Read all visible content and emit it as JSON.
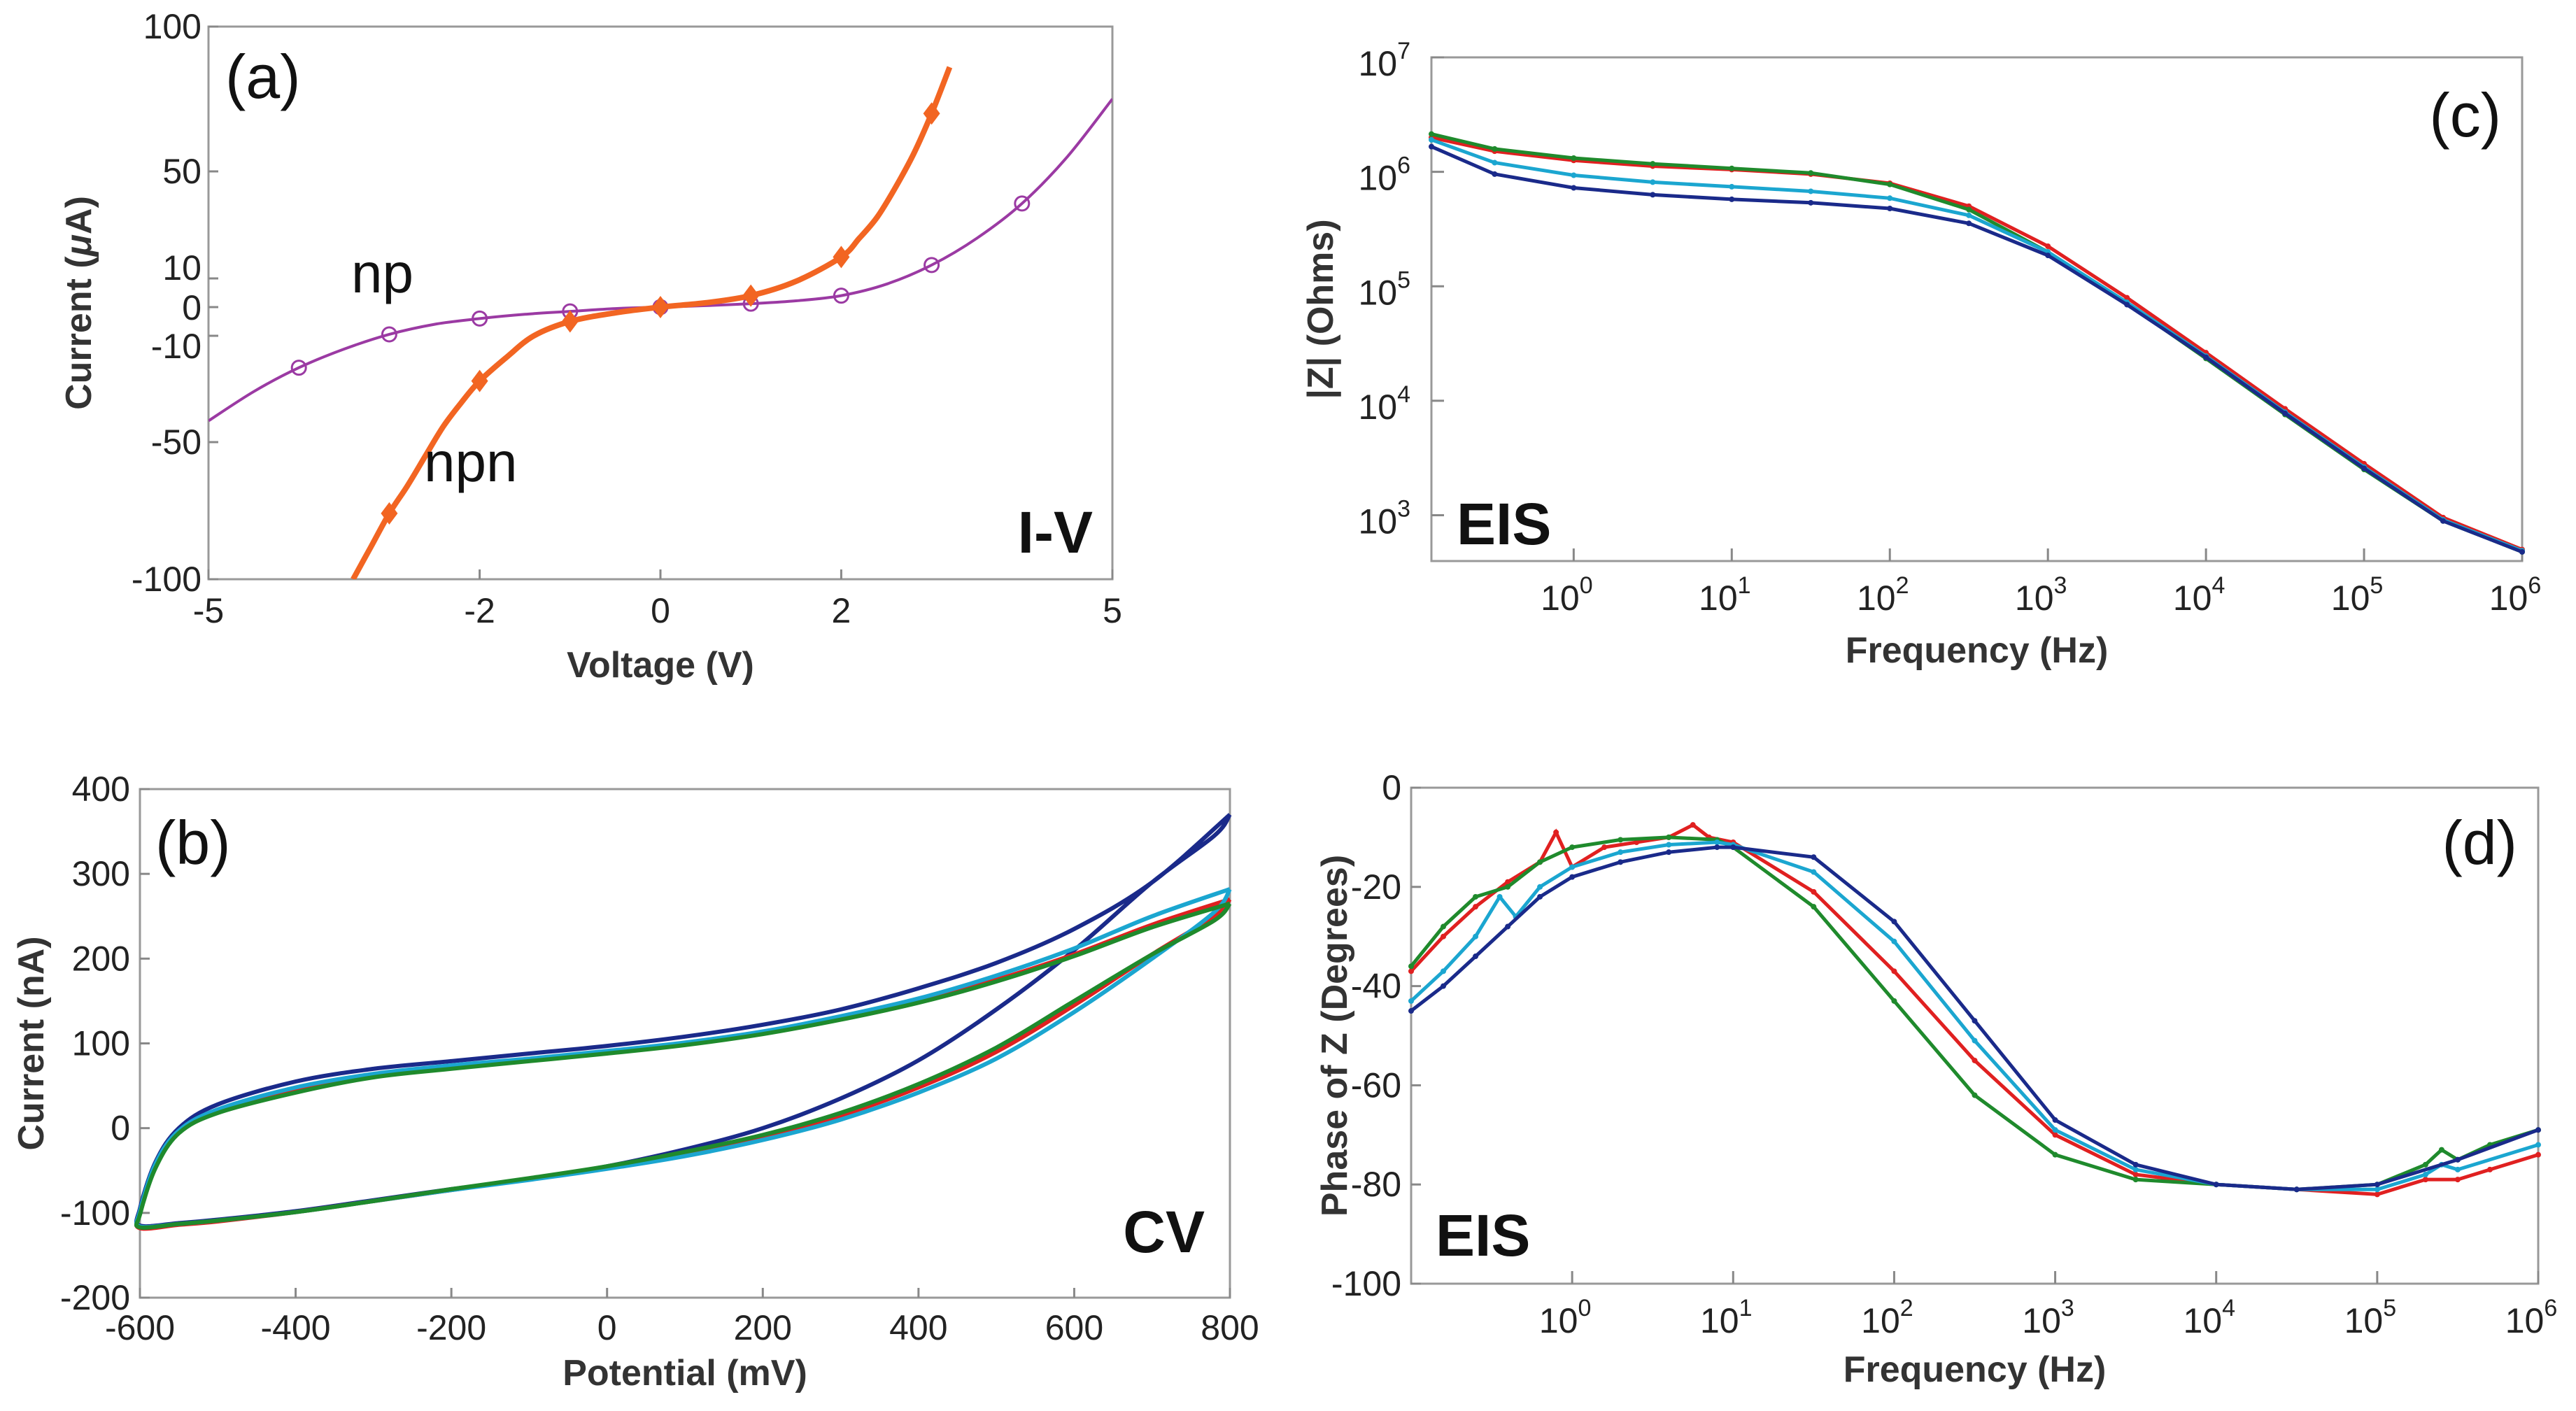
{
  "figure": {
    "panels": [
      "(a)",
      "(b)",
      "(c)",
      "(d)"
    ]
  },
  "chart_data": [
    {
      "id": "a",
      "type": "line",
      "panel_label": "(a)",
      "annotation": "I-V",
      "xlabel": "Voltage (V)",
      "ylabel": "Current (μA)",
      "ylabel_prefix": "Current (",
      "ylabel_mu": "μ",
      "ylabel_suffix": "A)",
      "xlim": [
        -5,
        5
      ],
      "ylim": [
        -100,
        100
      ],
      "x_ticks": [
        -5,
        -2,
        0,
        2,
        5
      ],
      "y_ticks": [
        -100,
        -50,
        -10,
        0,
        10,
        50,
        100
      ],
      "series": [
        {
          "name": "np",
          "color": "#9b3aa3",
          "marker": "circle",
          "x": [
            -5,
            -4.5,
            -4,
            -3.5,
            -3,
            -2.5,
            -2,
            -1.5,
            -1,
            -0.5,
            0,
            0.5,
            1,
            1.5,
            2,
            2.5,
            3,
            3.5,
            4,
            4.5,
            5
          ],
          "y": [
            -42,
            -31,
            -22,
            -15,
            -9.5,
            -6,
            -4,
            -2.5,
            -1.5,
            -0.5,
            0,
            0.5,
            1.2,
            2.2,
            4,
            8,
            15,
            25,
            38,
            55,
            75
          ],
          "marker_x": [
            -4,
            -3,
            -2,
            -1,
            0,
            1,
            2,
            3,
            4
          ],
          "marker_y": [
            -22,
            -9.5,
            -4,
            -1.5,
            0,
            1.2,
            4,
            15,
            38
          ]
        },
        {
          "name": "npn",
          "color": "#f26522",
          "marker": "diamond",
          "x": [
            -3.4,
            -3.2,
            -3,
            -2.8,
            -2.6,
            -2.4,
            -2.2,
            -2,
            -1.7,
            -1.4,
            -1,
            -0.5,
            0,
            0.5,
            1,
            1.5,
            2,
            2.2,
            2.4,
            2.6,
            2.8,
            3,
            3.2
          ],
          "y": [
            -100,
            -88,
            -76,
            -66,
            -55,
            -44,
            -35,
            -27,
            -18,
            -10,
            -5,
            -2,
            0,
            1.5,
            4,
            9,
            18,
            25,
            33,
            44,
            56,
            70,
            86
          ],
          "marker_x": [
            -3,
            -2,
            -1,
            0,
            1,
            2,
            3
          ],
          "marker_y": [
            -76,
            -27,
            -5,
            0,
            4,
            18,
            70
          ]
        }
      ]
    },
    {
      "id": "b",
      "type": "line",
      "panel_label": "(b)",
      "annotation": "CV",
      "xlabel": "Potential (mV)",
      "ylabel": "Current (nA)",
      "xlim": [
        -600,
        800
      ],
      "ylim": [
        -200,
        400
      ],
      "x_ticks": [
        -600,
        -400,
        -200,
        0,
        200,
        400,
        600,
        800
      ],
      "y_ticks": [
        -200,
        -100,
        0,
        100,
        200,
        300,
        400
      ],
      "series": [
        {
          "name": "blue",
          "color": "#1a2a8a",
          "x": [
            800,
            700,
            600,
            500,
            400,
            300,
            200,
            100,
            0,
            -100,
            -200,
            -300,
            -400,
            -500,
            -550,
            -580,
            -600,
            -600,
            -550,
            -500,
            -400,
            -300,
            -200,
            -100,
            0,
            100,
            200,
            300,
            400,
            500,
            600,
            700,
            780,
            800
          ],
          "y": [
            370,
            290,
            235,
            195,
            165,
            140,
            122,
            108,
            97,
            88,
            79,
            70,
            55,
            28,
            0,
            -40,
            -95,
            -115,
            -112,
            -108,
            -98,
            -85,
            -72,
            -60,
            -45,
            -25,
            0,
            35,
            80,
            140,
            210,
            290,
            345,
            370
          ]
        },
        {
          "name": "red",
          "color": "#e02020",
          "x": [
            800,
            700,
            600,
            500,
            400,
            300,
            200,
            100,
            0,
            -100,
            -200,
            -300,
            -400,
            -500,
            -550,
            -580,
            -600,
            -600,
            -550,
            -500,
            -400,
            -300,
            -200,
            -100,
            0,
            100,
            200,
            300,
            400,
            500,
            600,
            700,
            780,
            800
          ],
          "y": [
            270,
            240,
            205,
            175,
            150,
            130,
            113,
            100,
            90,
            81,
            72,
            62,
            45,
            20,
            -5,
            -45,
            -100,
            -118,
            -114,
            -110,
            -99,
            -86,
            -73,
            -60,
            -46,
            -30,
            -10,
            15,
            48,
            90,
            145,
            205,
            250,
            270
          ]
        },
        {
          "name": "cyan",
          "color": "#1ba6d0",
          "x": [
            800,
            700,
            600,
            500,
            400,
            300,
            200,
            100,
            0,
            -100,
            -200,
            -300,
            -400,
            -500,
            -550,
            -580,
            -600,
            -600,
            -550,
            -500,
            -400,
            -300,
            -200,
            -100,
            0,
            100,
            200,
            300,
            400,
            500,
            600,
            700,
            780,
            800
          ],
          "y": [
            282,
            250,
            212,
            180,
            153,
            132,
            114,
            101,
            91,
            82,
            74,
            64,
            48,
            22,
            -3,
            -42,
            -98,
            -116,
            -113,
            -109,
            -99,
            -86,
            -73,
            -61,
            -48,
            -33,
            -14,
            10,
            42,
            82,
            137,
            200,
            255,
            282
          ]
        },
        {
          "name": "green",
          "color": "#1f8a2c",
          "x": [
            800,
            700,
            600,
            500,
            400,
            300,
            200,
            100,
            0,
            -100,
            -200,
            -300,
            -400,
            -500,
            -550,
            -580,
            -600,
            -600,
            -550,
            -500,
            -400,
            -300,
            -200,
            -100,
            0,
            100,
            200,
            300,
            400,
            500,
            600,
            700,
            780,
            800
          ],
          "y": [
            265,
            237,
            203,
            173,
            148,
            128,
            111,
            98,
            88,
            79,
            70,
            60,
            42,
            18,
            -6,
            -47,
            -102,
            -117,
            -113,
            -109,
            -99,
            -86,
            -72,
            -59,
            -45,
            -28,
            -8,
            18,
            52,
            95,
            150,
            205,
            245,
            265
          ]
        }
      ]
    },
    {
      "id": "c",
      "type": "line",
      "panel_label": "(c)",
      "annotation": "EIS",
      "xlabel": "Frequency (Hz)",
      "ylabel": "|Z| (Ohms)",
      "xscale": "log",
      "yscale": "log",
      "xlim_log10": [
        -0.9,
        6
      ],
      "ylim_log10": [
        2.6,
        7
      ],
      "x_tick_exponents": [
        "0",
        "1",
        "2",
        "3",
        "4",
        "5",
        "6"
      ],
      "y_tick_exponents": [
        "3",
        "4",
        "5",
        "6",
        "7"
      ],
      "tick_base": "10",
      "series": [
        {
          "name": "red",
          "color": "#e02020",
          "log10_f": [
            -0.9,
            -0.5,
            0,
            0.5,
            1,
            1.5,
            2,
            2.5,
            3,
            3.5,
            4,
            4.5,
            5,
            5.5,
            6
          ],
          "log10_z": [
            6.3,
            6.18,
            6.1,
            6.05,
            6.02,
            5.98,
            5.9,
            5.7,
            5.35,
            4.9,
            4.42,
            3.93,
            3.45,
            2.98,
            2.7
          ]
        },
        {
          "name": "green",
          "color": "#1f8a2c",
          "log10_f": [
            -0.9,
            -0.5,
            0,
            0.5,
            1,
            1.5,
            2,
            2.5,
            3,
            3.5,
            4,
            4.5,
            5,
            5.5,
            6
          ],
          "log10_z": [
            6.33,
            6.2,
            6.12,
            6.07,
            6.03,
            5.99,
            5.89,
            5.67,
            5.3,
            4.85,
            4.37,
            3.88,
            3.4,
            2.95,
            2.68
          ]
        },
        {
          "name": "cyan",
          "color": "#1ba6d0",
          "log10_f": [
            -0.9,
            -0.5,
            0,
            0.5,
            1,
            1.5,
            2,
            2.5,
            3,
            3.5,
            4,
            4.5,
            5,
            5.5,
            6
          ],
          "log10_z": [
            6.28,
            6.08,
            5.97,
            5.91,
            5.87,
            5.83,
            5.77,
            5.62,
            5.3,
            4.86,
            4.39,
            3.9,
            3.42,
            2.96,
            2.69
          ]
        },
        {
          "name": "blue",
          "color": "#1a2a8a",
          "log10_f": [
            -0.9,
            -0.5,
            0,
            0.5,
            1,
            1.5,
            2,
            2.5,
            3,
            3.5,
            4,
            4.5,
            5,
            5.5,
            6
          ],
          "log10_z": [
            6.22,
            5.98,
            5.86,
            5.8,
            5.76,
            5.73,
            5.68,
            5.55,
            5.27,
            4.84,
            4.38,
            3.89,
            3.41,
            2.95,
            2.68
          ]
        }
      ]
    },
    {
      "id": "d",
      "type": "line",
      "panel_label": "(d)",
      "annotation": "EIS",
      "xlabel": "Frequency (Hz)",
      "ylabel": "Phase of Z (Degrees)",
      "xscale": "log",
      "xlim_log10": [
        -1,
        6
      ],
      "ylim": [
        -100,
        0
      ],
      "x_tick_exponents": [
        "0",
        "1",
        "2",
        "3",
        "4",
        "5",
        "6"
      ],
      "tick_base": "10",
      "y_ticks": [
        -100,
        -80,
        -60,
        -40,
        -20,
        0
      ],
      "series": [
        {
          "name": "red",
          "color": "#e02020",
          "log10_f": [
            -1,
            -0.8,
            -0.6,
            -0.4,
            -0.2,
            -0.1,
            0,
            0.2,
            0.4,
            0.6,
            0.75,
            0.85,
            1,
            1.5,
            2,
            2.5,
            3,
            3.5,
            4,
            4.5,
            5,
            5.3,
            5.5,
            5.7,
            6
          ],
          "phase": [
            -37,
            -30,
            -24,
            -19,
            -15,
            -9,
            -16,
            -12,
            -11,
            -10,
            -7.5,
            -10,
            -11,
            -21,
            -37,
            -55,
            -70,
            -78,
            -80,
            -81,
            -82,
            -79,
            -79,
            -77,
            -74
          ]
        },
        {
          "name": "green",
          "color": "#1f8a2c",
          "log10_f": [
            -1,
            -0.8,
            -0.6,
            -0.4,
            -0.2,
            0,
            0.3,
            0.6,
            0.9,
            1,
            1.5,
            2,
            2.5,
            3,
            3.5,
            4,
            4.5,
            5,
            5.3,
            5.4,
            5.5,
            5.7,
            6
          ],
          "phase": [
            -36,
            -28,
            -22,
            -20,
            -15,
            -12,
            -10.5,
            -10,
            -10.5,
            -12,
            -24,
            -43,
            -62,
            -74,
            -79,
            -80,
            -81,
            -80,
            -76,
            -73,
            -75,
            -72,
            -69
          ]
        },
        {
          "name": "cyan",
          "color": "#1ba6d0",
          "log10_f": [
            -1,
            -0.8,
            -0.6,
            -0.45,
            -0.35,
            -0.2,
            0,
            0.3,
            0.6,
            0.9,
            1,
            1.5,
            2,
            2.5,
            3,
            3.5,
            4,
            4.5,
            5,
            5.3,
            5.4,
            5.5,
            6
          ],
          "phase": [
            -43,
            -37,
            -30,
            -22,
            -26,
            -20,
            -16,
            -13,
            -11.5,
            -11,
            -11.5,
            -17,
            -31,
            -51,
            -69,
            -77,
            -80,
            -81,
            -81,
            -78,
            -76,
            -77,
            -72
          ]
        },
        {
          "name": "blue",
          "color": "#1a2a8a",
          "log10_f": [
            -1,
            -0.8,
            -0.6,
            -0.4,
            -0.2,
            0,
            0.3,
            0.6,
            0.9,
            1,
            1.5,
            2,
            2.5,
            3,
            3.5,
            4,
            4.5,
            5,
            5.5,
            6
          ],
          "phase": [
            -45,
            -40,
            -34,
            -28,
            -22,
            -18,
            -15,
            -13,
            -12,
            -12,
            -14,
            -27,
            -47,
            -67,
            -76,
            -80,
            -81,
            -80,
            -75,
            -69
          ]
        }
      ]
    }
  ]
}
